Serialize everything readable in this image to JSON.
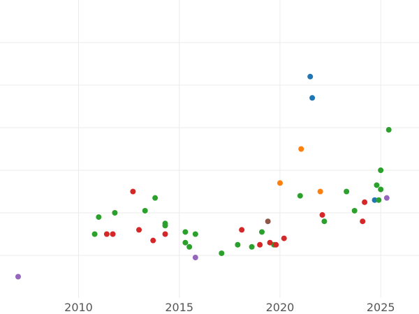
{
  "chart_data": {
    "type": "scatter",
    "title": "",
    "xlabel": "",
    "ylabel": "",
    "xlim": [
      2006.1,
      2026.9
    ],
    "ylim": [
      0,
      7
    ],
    "grid": true,
    "legend": "none",
    "x_ticks": [
      {
        "value": 2010,
        "label": "2010"
      },
      {
        "value": 2015,
        "label": "2015"
      },
      {
        "value": 2020,
        "label": "2020"
      },
      {
        "value": 2025,
        "label": "2025"
      }
    ],
    "y_ticks": [
      1,
      2,
      3,
      4,
      5,
      6
    ],
    "series": [
      {
        "color": "#1f77b4",
        "points": [
          [
            2021.5,
            5.2
          ],
          [
            2021.6,
            4.7
          ],
          [
            2024.7,
            2.3
          ]
        ]
      },
      {
        "color": "#ff7f0e",
        "points": [
          [
            2021.05,
            3.5
          ],
          [
            2020.0,
            2.7
          ],
          [
            2022.0,
            2.5
          ]
        ]
      },
      {
        "color": "#2ca02c",
        "points": [
          [
            2010.8,
            1.5
          ],
          [
            2011.0,
            1.9
          ],
          [
            2011.8,
            2.0
          ],
          [
            2013.3,
            2.05
          ],
          [
            2013.8,
            2.35
          ],
          [
            2014.3,
            1.7
          ],
          [
            2014.3,
            1.75
          ],
          [
            2015.3,
            1.3
          ],
          [
            2015.5,
            1.2
          ],
          [
            2015.8,
            1.5
          ],
          [
            2015.3,
            1.55
          ],
          [
            2017.1,
            1.05
          ],
          [
            2017.9,
            1.25
          ],
          [
            2018.6,
            1.2
          ],
          [
            2019.1,
            1.55
          ],
          [
            2019.7,
            1.25
          ],
          [
            2021.0,
            2.4
          ],
          [
            2022.2,
            1.8
          ],
          [
            2023.3,
            2.5
          ],
          [
            2023.7,
            2.05
          ],
          [
            2024.8,
            2.65
          ],
          [
            2024.9,
            2.3
          ],
          [
            2025.0,
            2.55
          ],
          [
            2025.0,
            3.0
          ],
          [
            2025.4,
            3.95
          ]
        ]
      },
      {
        "color": "#d62728",
        "points": [
          [
            2011.4,
            1.5
          ],
          [
            2011.7,
            1.5
          ],
          [
            2012.7,
            2.5
          ],
          [
            2013.0,
            1.6
          ],
          [
            2013.7,
            1.35
          ],
          [
            2014.3,
            1.5
          ],
          [
            2018.1,
            1.6
          ],
          [
            2019.0,
            1.25
          ],
          [
            2019.5,
            1.3
          ],
          [
            2019.8,
            1.25
          ],
          [
            2020.2,
            1.4
          ],
          [
            2022.1,
            1.95
          ],
          [
            2024.1,
            1.8
          ],
          [
            2024.2,
            2.25
          ]
        ]
      },
      {
        "color": "#9467bd",
        "points": [
          [
            2007.0,
            0.5
          ],
          [
            2015.8,
            0.95
          ],
          [
            2025.3,
            2.35
          ]
        ]
      },
      {
        "color": "#8c564b",
        "points": [
          [
            2019.4,
            1.8
          ]
        ]
      }
    ]
  }
}
